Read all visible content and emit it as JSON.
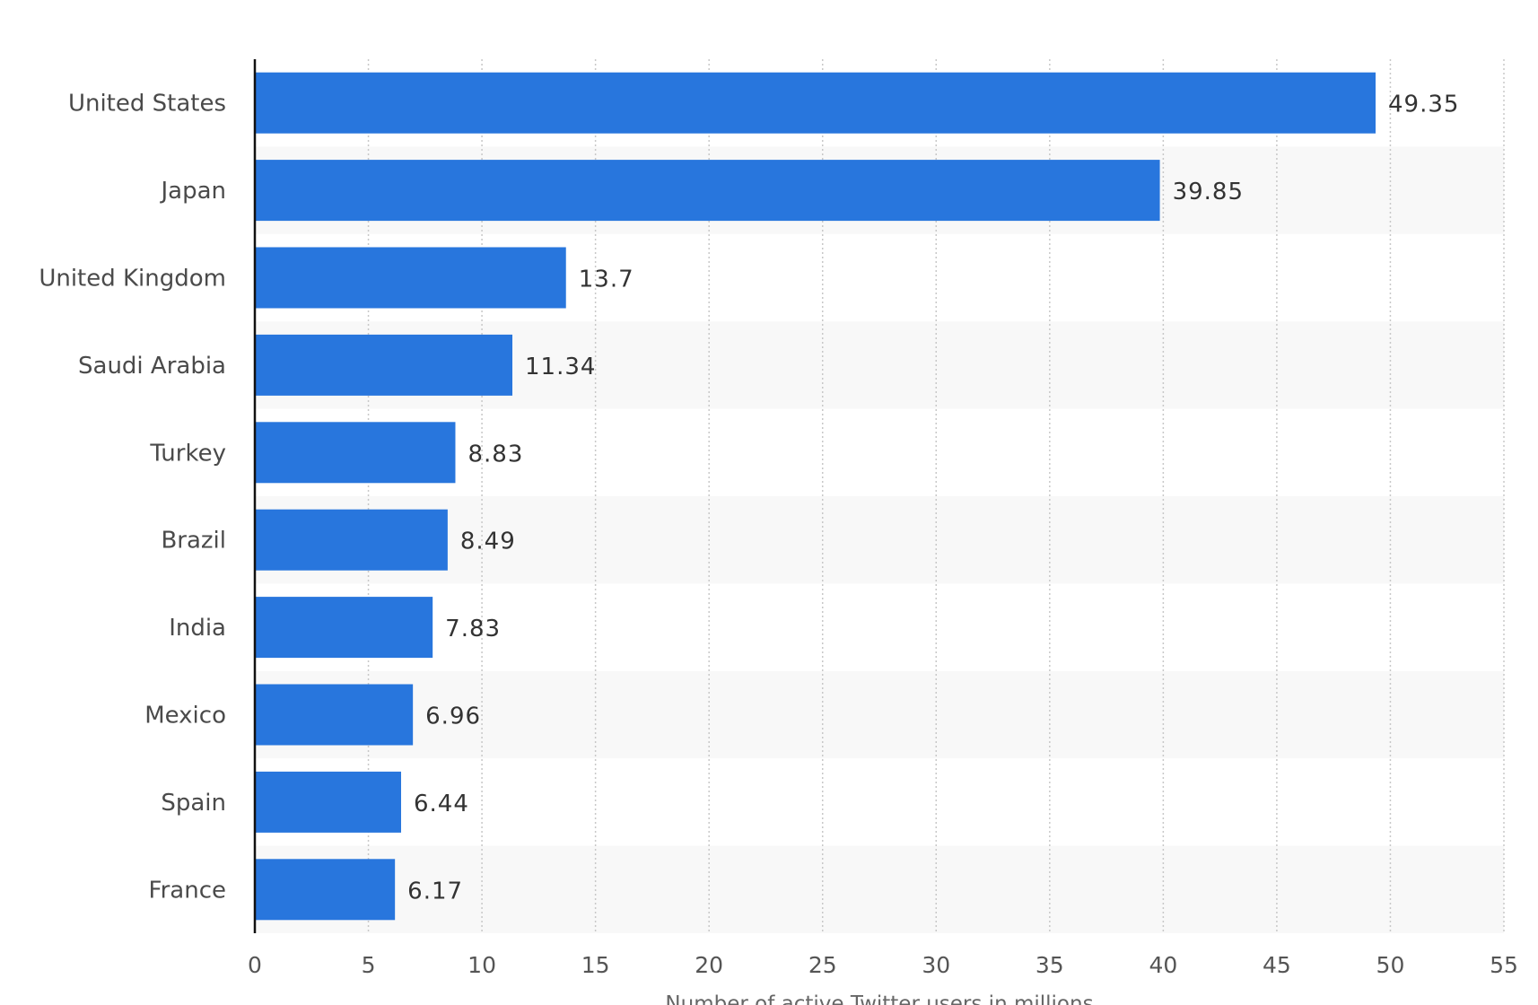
{
  "chart_data": {
    "type": "bar",
    "orientation": "horizontal",
    "categories": [
      "United States",
      "Japan",
      "United Kingdom",
      "Saudi Arabia",
      "Turkey",
      "Brazil",
      "India",
      "Mexico",
      "Spain",
      "France"
    ],
    "values": [
      49.35,
      39.85,
      13.7,
      11.34,
      8.83,
      8.49,
      7.83,
      6.96,
      6.44,
      6.17
    ],
    "value_labels": [
      "49.35",
      "39.85",
      "13.7",
      "11.34",
      "8.83",
      "8.49",
      "7.83",
      "6.96",
      "6.44",
      "6.17"
    ],
    "title": "",
    "xlabel": "Number of active Twitter users in millions",
    "ylabel": "",
    "xlim": [
      0,
      55
    ],
    "x_ticks": [
      0,
      5,
      10,
      15,
      20,
      25,
      30,
      35,
      40,
      45,
      50,
      55
    ],
    "grid": true,
    "legend": "none",
    "colors": {
      "bar": "#2876dd",
      "band": "#f8f8f8",
      "grid": "#c8c8c8",
      "axis": "#111111"
    }
  }
}
